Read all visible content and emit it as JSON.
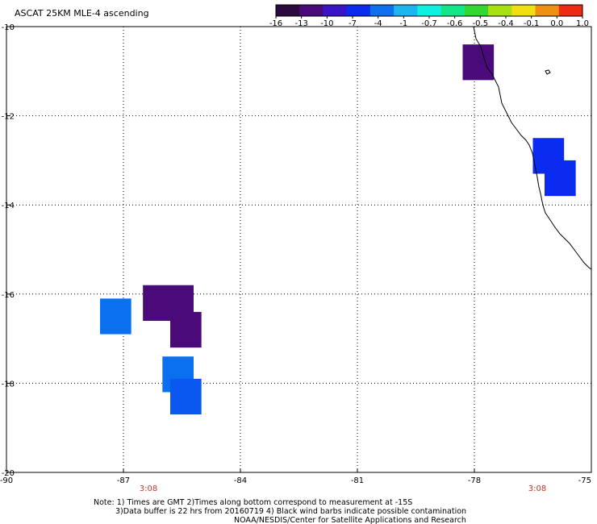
{
  "title": "ASCAT 25KM MLE-4 ascending",
  "colorbar": {
    "labels": [
      "-16",
      "-13",
      "-10",
      "-7",
      "-4",
      "-1",
      "-0.7",
      "-0.6",
      "-0.5",
      "-0.4",
      "-0.1",
      "0.0",
      "1.0"
    ],
    "colors": [
      "#2b0a3d",
      "#4a0a7a",
      "#3a14c8",
      "#0a2cf0",
      "#0a70f0",
      "#1ab6f2",
      "#10f0e0",
      "#10e888",
      "#30d830",
      "#a8e010",
      "#f0e010",
      "#f09010",
      "#f02a10"
    ]
  },
  "map": {
    "lat_ticks": [
      "-10",
      "-12",
      "-14",
      "-16",
      "-18",
      "-20"
    ],
    "lon_ticks": [
      "-90",
      "-87",
      "-84",
      "-81",
      "-78",
      "-75"
    ],
    "time_labels": [
      "3:08",
      "3:08"
    ]
  },
  "cells": [
    {
      "lon": [
        -78.3,
        -77.5
      ],
      "lat": [
        -10.4,
        -11.2
      ],
      "color": "#4a0a7a"
    },
    {
      "lon": [
        -76.5,
        -75.7
      ],
      "lat": [
        -12.5,
        -13.3
      ],
      "color": "#0a2cf0"
    },
    {
      "lon": [
        -76.2,
        -75.4
      ],
      "lat": [
        -13.0,
        -13.8
      ],
      "color": "#0a2cf0"
    },
    {
      "lon": [
        -86.5,
        -85.2
      ],
      "lat": [
        -15.8,
        -16.6
      ],
      "color": "#4a0a7a"
    },
    {
      "lon": [
        -85.8,
        -85.0
      ],
      "lat": [
        -16.4,
        -17.2
      ],
      "color": "#4a0a7a"
    },
    {
      "lon": [
        -87.6,
        -86.8
      ],
      "lat": [
        -16.1,
        -16.9
      ],
      "color": "#0a70f0"
    },
    {
      "lon": [
        -86.0,
        -85.2
      ],
      "lat": [
        -17.4,
        -18.2
      ],
      "color": "#0a70f0"
    },
    {
      "lon": [
        -85.8,
        -85.0
      ],
      "lat": [
        -17.9,
        -18.7
      ],
      "color": "#0a58f0"
    }
  ],
  "notes": [
    "Note: 1) Times are GMT 2)Times along bottom correspond to measurement at -15S",
    "3)Data buffer is 22 hrs from 20160719 4) Black wind barbs indicate possible contamination",
    "NOAA/NESDIS/Center for Satellite Applications and Research"
  ]
}
